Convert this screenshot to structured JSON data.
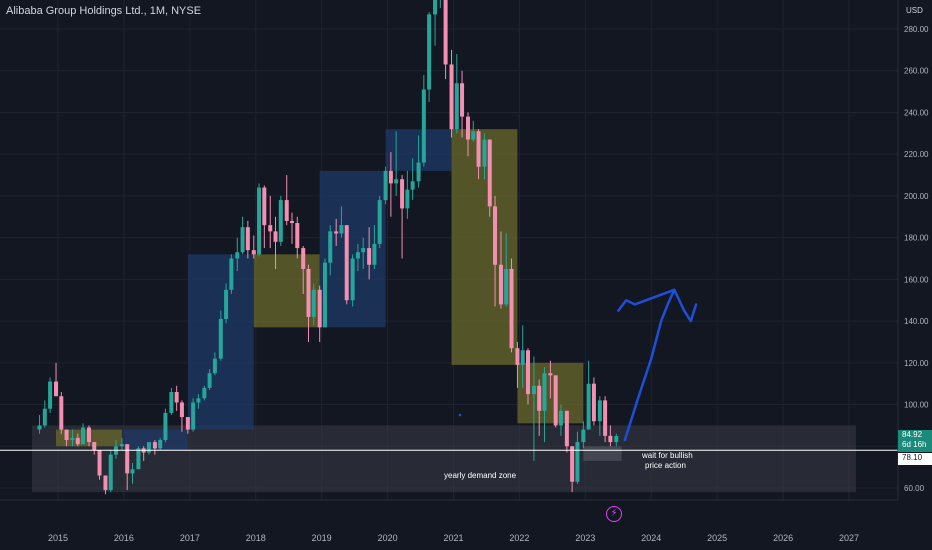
{
  "header": {
    "title": "Alibaba Group Holdings Ltd., 1M, NYSE"
  },
  "axis": {
    "currency": "USD"
  },
  "badges": {
    "last_price": "84.92",
    "countdown": "6d 16h",
    "line_price": "78.10"
  },
  "annotations": {
    "zone_label": "yearly demand zone",
    "note_line1": "wait for bullish",
    "note_line2": "price action"
  },
  "icons": {
    "flash": "lightning-icon"
  },
  "colors": {
    "background": "#131722",
    "up": "#26a69a",
    "down": "#f48fb1",
    "blue_box": "#1e3a66",
    "olive_box": "#6b6a2c",
    "zone": "#3a3d46",
    "drawing": "#1e4fd8"
  },
  "chart_data": {
    "type": "candlestick",
    "title": "Alibaba Group Holdings Ltd., 1M, NYSE",
    "ylim": [
      50,
      297
    ],
    "y_ticks": [
      60,
      80,
      100,
      120,
      140,
      160,
      180,
      200,
      220,
      240,
      260,
      280
    ],
    "x_ticks": [
      2015,
      2016,
      2017,
      2018,
      2019,
      2020,
      2021,
      2022,
      2023,
      2024,
      2025,
      2026,
      2027
    ],
    "xlim": [
      2014.6,
      2027.6
    ],
    "candles": [
      {
        "t": 2014.72,
        "o": 88,
        "h": 95,
        "l": 86,
        "c": 90
      },
      {
        "t": 2014.8,
        "o": 90,
        "h": 102,
        "l": 89,
        "c": 98
      },
      {
        "t": 2014.88,
        "o": 98,
        "h": 113,
        "l": 96,
        "c": 111
      },
      {
        "t": 2014.97,
        "o": 111,
        "h": 120,
        "l": 104,
        "c": 104
      },
      {
        "t": 2015.05,
        "o": 104,
        "h": 106,
        "l": 86,
        "c": 88
      },
      {
        "t": 2015.13,
        "o": 88,
        "h": 88,
        "l": 80,
        "c": 83
      },
      {
        "t": 2015.22,
        "o": 83,
        "h": 88,
        "l": 80,
        "c": 84
      },
      {
        "t": 2015.3,
        "o": 84,
        "h": 86,
        "l": 80,
        "c": 81
      },
      {
        "t": 2015.38,
        "o": 81,
        "h": 91,
        "l": 81,
        "c": 89
      },
      {
        "t": 2015.47,
        "o": 89,
        "h": 90,
        "l": 80,
        "c": 82
      },
      {
        "t": 2015.55,
        "o": 82,
        "h": 82,
        "l": 76,
        "c": 78
      },
      {
        "t": 2015.63,
        "o": 78,
        "h": 78,
        "l": 64,
        "c": 66
      },
      {
        "t": 2015.72,
        "o": 66,
        "h": 66,
        "l": 57,
        "c": 59
      },
      {
        "t": 2015.8,
        "o": 59,
        "h": 78,
        "l": 58,
        "c": 76
      },
      {
        "t": 2015.88,
        "o": 76,
        "h": 83,
        "l": 74,
        "c": 80
      },
      {
        "t": 2015.97,
        "o": 80,
        "h": 84,
        "l": 78,
        "c": 81
      },
      {
        "t": 2016.05,
        "o": 81,
        "h": 81,
        "l": 59,
        "c": 67
      },
      {
        "t": 2016.13,
        "o": 67,
        "h": 72,
        "l": 62,
        "c": 69
      },
      {
        "t": 2016.22,
        "o": 69,
        "h": 80,
        "l": 69,
        "c": 79
      },
      {
        "t": 2016.3,
        "o": 79,
        "h": 80,
        "l": 73,
        "c": 77
      },
      {
        "t": 2016.38,
        "o": 77,
        "h": 82,
        "l": 76,
        "c": 82
      },
      {
        "t": 2016.47,
        "o": 82,
        "h": 83,
        "l": 76,
        "c": 79
      },
      {
        "t": 2016.55,
        "o": 79,
        "h": 84,
        "l": 78,
        "c": 83
      },
      {
        "t": 2016.63,
        "o": 83,
        "h": 98,
        "l": 82,
        "c": 96
      },
      {
        "t": 2016.72,
        "o": 96,
        "h": 108,
        "l": 95,
        "c": 106
      },
      {
        "t": 2016.8,
        "o": 106,
        "h": 109,
        "l": 97,
        "c": 101
      },
      {
        "t": 2016.88,
        "o": 101,
        "h": 102,
        "l": 87,
        "c": 94
      },
      {
        "t": 2016.97,
        "o": 94,
        "h": 94,
        "l": 86,
        "c": 88
      },
      {
        "t": 2017.05,
        "o": 88,
        "h": 103,
        "l": 87,
        "c": 101
      },
      {
        "t": 2017.13,
        "o": 101,
        "h": 105,
        "l": 98,
        "c": 103
      },
      {
        "t": 2017.22,
        "o": 103,
        "h": 109,
        "l": 102,
        "c": 108
      },
      {
        "t": 2017.3,
        "o": 108,
        "h": 117,
        "l": 107,
        "c": 115
      },
      {
        "t": 2017.38,
        "o": 115,
        "h": 125,
        "l": 114,
        "c": 122
      },
      {
        "t": 2017.47,
        "o": 122,
        "h": 145,
        "l": 121,
        "c": 141
      },
      {
        "t": 2017.55,
        "o": 141,
        "h": 158,
        "l": 139,
        "c": 155
      },
      {
        "t": 2017.63,
        "o": 155,
        "h": 172,
        "l": 153,
        "c": 170
      },
      {
        "t": 2017.72,
        "o": 170,
        "h": 180,
        "l": 164,
        "c": 173
      },
      {
        "t": 2017.8,
        "o": 173,
        "h": 190,
        "l": 172,
        "c": 185
      },
      {
        "t": 2017.88,
        "o": 185,
        "h": 188,
        "l": 170,
        "c": 174
      },
      {
        "t": 2017.97,
        "o": 174,
        "h": 181,
        "l": 170,
        "c": 172
      },
      {
        "t": 2018.05,
        "o": 172,
        "h": 206,
        "l": 171,
        "c": 204
      },
      {
        "t": 2018.13,
        "o": 204,
        "h": 205,
        "l": 175,
        "c": 186
      },
      {
        "t": 2018.22,
        "o": 186,
        "h": 200,
        "l": 175,
        "c": 183
      },
      {
        "t": 2018.3,
        "o": 183,
        "h": 190,
        "l": 165,
        "c": 178
      },
      {
        "t": 2018.38,
        "o": 178,
        "h": 200,
        "l": 176,
        "c": 198
      },
      {
        "t": 2018.47,
        "o": 198,
        "h": 210,
        "l": 186,
        "c": 188
      },
      {
        "t": 2018.55,
        "o": 188,
        "h": 192,
        "l": 177,
        "c": 187
      },
      {
        "t": 2018.63,
        "o": 187,
        "h": 190,
        "l": 170,
        "c": 175
      },
      {
        "t": 2018.72,
        "o": 175,
        "h": 176,
        "l": 153,
        "c": 165
      },
      {
        "t": 2018.8,
        "o": 165,
        "h": 167,
        "l": 130,
        "c": 142
      },
      {
        "t": 2018.88,
        "o": 142,
        "h": 158,
        "l": 138,
        "c": 155
      },
      {
        "t": 2018.97,
        "o": 155,
        "h": 157,
        "l": 130,
        "c": 137
      },
      {
        "t": 2019.05,
        "o": 137,
        "h": 170,
        "l": 137,
        "c": 168
      },
      {
        "t": 2019.13,
        "o": 168,
        "h": 186,
        "l": 162,
        "c": 183
      },
      {
        "t": 2019.22,
        "o": 183,
        "h": 189,
        "l": 176,
        "c": 182
      },
      {
        "t": 2019.3,
        "o": 182,
        "h": 195,
        "l": 180,
        "c": 186
      },
      {
        "t": 2019.38,
        "o": 186,
        "h": 186,
        "l": 148,
        "c": 150
      },
      {
        "t": 2019.47,
        "o": 150,
        "h": 172,
        "l": 147,
        "c": 170
      },
      {
        "t": 2019.55,
        "o": 170,
        "h": 177,
        "l": 164,
        "c": 173
      },
      {
        "t": 2019.63,
        "o": 173,
        "h": 180,
        "l": 165,
        "c": 175
      },
      {
        "t": 2019.72,
        "o": 175,
        "h": 185,
        "l": 160,
        "c": 167
      },
      {
        "t": 2019.8,
        "o": 167,
        "h": 186,
        "l": 165,
        "c": 177
      },
      {
        "t": 2019.88,
        "o": 177,
        "h": 200,
        "l": 175,
        "c": 198
      },
      {
        "t": 2019.97,
        "o": 198,
        "h": 214,
        "l": 196,
        "c": 212
      },
      {
        "t": 2020.05,
        "o": 212,
        "h": 221,
        "l": 190,
        "c": 206
      },
      {
        "t": 2020.13,
        "o": 206,
        "h": 231,
        "l": 200,
        "c": 208
      },
      {
        "t": 2020.22,
        "o": 208,
        "h": 210,
        "l": 170,
        "c": 194
      },
      {
        "t": 2020.3,
        "o": 194,
        "h": 212,
        "l": 189,
        "c": 203
      },
      {
        "t": 2020.38,
        "o": 203,
        "h": 218,
        "l": 198,
        "c": 207
      },
      {
        "t": 2020.47,
        "o": 207,
        "h": 229,
        "l": 204,
        "c": 216
      },
      {
        "t": 2020.55,
        "o": 216,
        "h": 258,
        "l": 214,
        "c": 251
      },
      {
        "t": 2020.63,
        "o": 251,
        "h": 288,
        "l": 245,
        "c": 287
      },
      {
        "t": 2020.72,
        "o": 287,
        "h": 296,
        "l": 272,
        "c": 294
      },
      {
        "t": 2020.8,
        "o": 294,
        "h": 319,
        "l": 290,
        "c": 305
      },
      {
        "t": 2020.88,
        "o": 305,
        "h": 306,
        "l": 256,
        "c": 263
      },
      {
        "t": 2020.97,
        "o": 263,
        "h": 270,
        "l": 228,
        "c": 232
      },
      {
        "t": 2021.05,
        "o": 232,
        "h": 268,
        "l": 230,
        "c": 254
      },
      {
        "t": 2021.13,
        "o": 254,
        "h": 260,
        "l": 228,
        "c": 238
      },
      {
        "t": 2021.22,
        "o": 238,
        "h": 240,
        "l": 219,
        "c": 227
      },
      {
        "t": 2021.3,
        "o": 227,
        "h": 236,
        "l": 226,
        "c": 231
      },
      {
        "t": 2021.38,
        "o": 231,
        "h": 232,
        "l": 208,
        "c": 214
      },
      {
        "t": 2021.47,
        "o": 214,
        "h": 230,
        "l": 208,
        "c": 227
      },
      {
        "t": 2021.55,
        "o": 227,
        "h": 227,
        "l": 190,
        "c": 195
      },
      {
        "t": 2021.63,
        "o": 195,
        "h": 200,
        "l": 147,
        "c": 167
      },
      {
        "t": 2021.72,
        "o": 167,
        "h": 183,
        "l": 146,
        "c": 148
      },
      {
        "t": 2021.8,
        "o": 148,
        "h": 182,
        "l": 147,
        "c": 165
      },
      {
        "t": 2021.88,
        "o": 165,
        "h": 170,
        "l": 125,
        "c": 127
      },
      {
        "t": 2021.97,
        "o": 127,
        "h": 130,
        "l": 108,
        "c": 119
      },
      {
        "t": 2022.05,
        "o": 119,
        "h": 138,
        "l": 108,
        "c": 126
      },
      {
        "t": 2022.13,
        "o": 126,
        "h": 127,
        "l": 100,
        "c": 105
      },
      {
        "t": 2022.22,
        "o": 105,
        "h": 123,
        "l": 73,
        "c": 109
      },
      {
        "t": 2022.3,
        "o": 109,
        "h": 112,
        "l": 85,
        "c": 97
      },
      {
        "t": 2022.38,
        "o": 97,
        "h": 118,
        "l": 82,
        "c": 115
      },
      {
        "t": 2022.47,
        "o": 115,
        "h": 121,
        "l": 103,
        "c": 114
      },
      {
        "t": 2022.55,
        "o": 114,
        "h": 114,
        "l": 89,
        "c": 90
      },
      {
        "t": 2022.63,
        "o": 90,
        "h": 100,
        "l": 85,
        "c": 97
      },
      {
        "t": 2022.72,
        "o": 97,
        "h": 97,
        "l": 77,
        "c": 80
      },
      {
        "t": 2022.8,
        "o": 80,
        "h": 80,
        "l": 58,
        "c": 63
      },
      {
        "t": 2022.88,
        "o": 63,
        "h": 87,
        "l": 62,
        "c": 82
      },
      {
        "t": 2022.97,
        "o": 82,
        "h": 92,
        "l": 79,
        "c": 88
      },
      {
        "t": 2023.05,
        "o": 88,
        "h": 121,
        "l": 88,
        "c": 110
      },
      {
        "t": 2023.13,
        "o": 110,
        "h": 113,
        "l": 90,
        "c": 92
      },
      {
        "t": 2023.22,
        "o": 92,
        "h": 104,
        "l": 85,
        "c": 102
      },
      {
        "t": 2023.3,
        "o": 102,
        "h": 104,
        "l": 82,
        "c": 85
      },
      {
        "t": 2023.38,
        "o": 85,
        "h": 90,
        "l": 80,
        "c": 82
      },
      {
        "t": 2023.47,
        "o": 82,
        "h": 86,
        "l": 80,
        "c": 84.92
      }
    ],
    "zones": [
      {
        "kind": "blue",
        "x0": 2016.0,
        "x1": 2016.97,
        "y0": 78,
        "y1": 88
      },
      {
        "kind": "olive",
        "x0": 2014.97,
        "x1": 2015.97,
        "y0": 80,
        "y1": 88
      },
      {
        "kind": "blue",
        "x0": 2016.97,
        "x1": 2017.97,
        "y0": 88,
        "y1": 172
      },
      {
        "kind": "olive",
        "x0": 2017.97,
        "x1": 2018.97,
        "y0": 137,
        "y1": 172
      },
      {
        "kind": "blue",
        "x0": 2018.97,
        "x1": 2019.97,
        "y0": 137,
        "y1": 212
      },
      {
        "kind": "blue",
        "x0": 2019.97,
        "x1": 2020.97,
        "y0": 212,
        "y1": 232
      },
      {
        "kind": "olive",
        "x0": 2020.97,
        "x1": 2021.97,
        "y0": 119,
        "y1": 232
      },
      {
        "kind": "olive",
        "x0": 2021.97,
        "x1": 2022.97,
        "y0": 91,
        "y1": 120
      },
      {
        "kind": "gray",
        "x0": 2022.97,
        "x1": 2023.55,
        "y0": 73,
        "y1": 80
      },
      {
        "kind": "zone",
        "x0": 2014.6,
        "x1": 2027.6,
        "y0": 58,
        "y1": 90
      }
    ],
    "hline": 78.1,
    "projection": [
      [
        2023.6,
        83
      ],
      [
        2023.8,
        103
      ],
      [
        2024.0,
        122
      ],
      [
        2024.15,
        140
      ],
      [
        2024.25,
        148
      ],
      [
        2024.35,
        155
      ],
      [
        2024.5,
        145
      ],
      [
        2024.6,
        140
      ],
      [
        2024.68,
        148
      ]
    ],
    "projection_head": [
      [
        2023.5,
        145
      ],
      [
        2023.62,
        150
      ],
      [
        2023.75,
        148
      ]
    ]
  }
}
